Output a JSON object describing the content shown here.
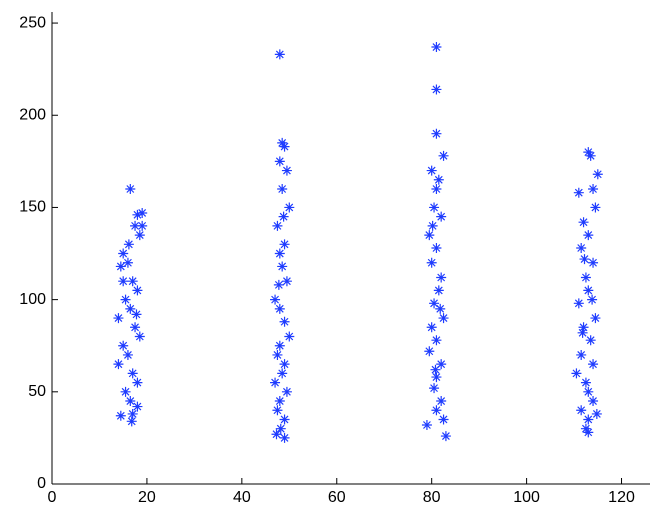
{
  "chart_data": {
    "type": "scatter",
    "marker": "asterisk",
    "color": "#1f3cff",
    "xlim": [
      0,
      126
    ],
    "ylim": [
      0,
      256
    ],
    "xticks": [
      0,
      20,
      40,
      60,
      80,
      100,
      120
    ],
    "yticks": [
      0,
      50,
      100,
      150,
      200,
      250
    ],
    "x": [
      16.5,
      19,
      18,
      17.5,
      18.5,
      15,
      16,
      14.5,
      17,
      18,
      15.5,
      16.5,
      14,
      17.5,
      18.5,
      15,
      16,
      14,
      17,
      18,
      15.5,
      16.5,
      18,
      17,
      14.5,
      16.8,
      19,
      15,
      17.8,
      16.2,
      48,
      48.5,
      49,
      48,
      49.5,
      48.5,
      50,
      47.5,
      49,
      48,
      48.5,
      49.5,
      47,
      48,
      49,
      50,
      48,
      47.5,
      49,
      48.5,
      47,
      49.5,
      48,
      47.5,
      49,
      48.2,
      47.3,
      49,
      48.8,
      47.8,
      81,
      81,
      81,
      82.5,
      80,
      81.5,
      81,
      80.5,
      82,
      79.5,
      81,
      80,
      82,
      81.5,
      80.5,
      82.5,
      80,
      81,
      79.5,
      82,
      81,
      80.5,
      82,
      81,
      79,
      82.5,
      83,
      80.2,
      81.8,
      80.8,
      113,
      113.5,
      115,
      111,
      114,
      114.5,
      112,
      113,
      111.5,
      114,
      112.5,
      113,
      111,
      114.5,
      112,
      113.5,
      111.5,
      114,
      110.5,
      112.5,
      113,
      114,
      111.5,
      113,
      112.5,
      113,
      114.8,
      112.2,
      113.8,
      111.8
    ],
    "y": [
      160,
      147,
      146,
      140,
      135,
      125,
      120,
      118,
      110,
      105,
      100,
      95,
      90,
      85,
      80,
      75,
      70,
      65,
      60,
      55,
      50,
      45,
      42,
      38,
      37,
      34,
      140,
      110,
      92,
      130,
      233,
      185,
      183,
      175,
      170,
      160,
      150,
      140,
      130,
      125,
      118,
      110,
      100,
      95,
      88,
      80,
      75,
      70,
      65,
      60,
      55,
      50,
      45,
      40,
      35,
      30,
      27,
      25,
      145,
      108,
      237,
      214,
      190,
      178,
      170,
      165,
      160,
      150,
      145,
      135,
      128,
      120,
      112,
      105,
      98,
      90,
      85,
      78,
      72,
      65,
      58,
      52,
      45,
      40,
      32,
      35,
      26,
      140,
      95,
      62,
      180,
      178,
      168,
      158,
      160,
      150,
      142,
      135,
      128,
      120,
      112,
      105,
      98,
      90,
      85,
      78,
      70,
      65,
      60,
      55,
      50,
      45,
      40,
      35,
      30,
      28,
      38,
      122,
      100,
      82
    ]
  }
}
